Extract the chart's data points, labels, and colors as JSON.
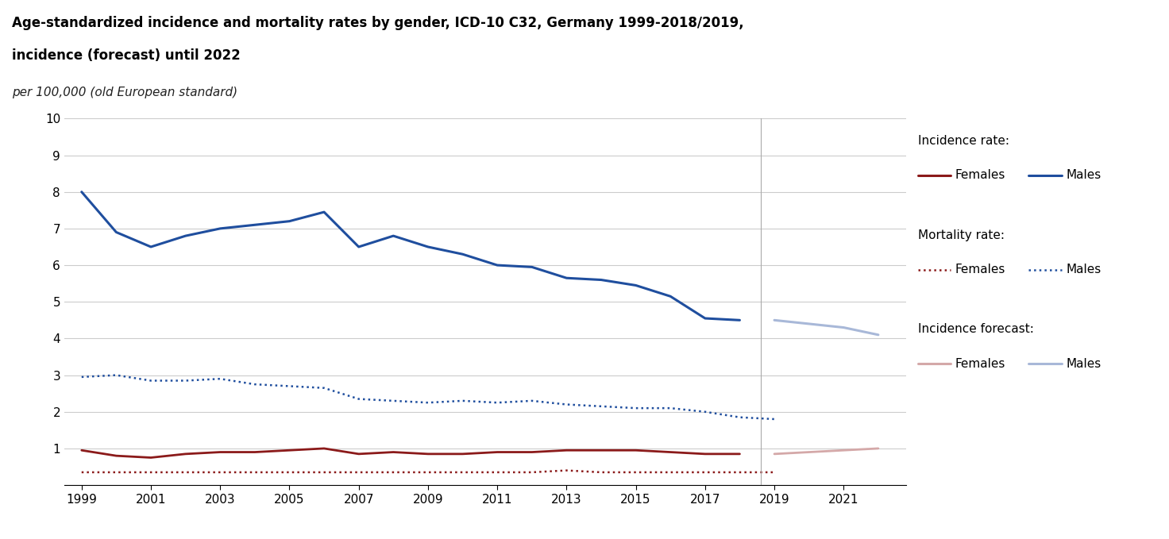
{
  "title_line1": "Age-standardized incidence and mortality rates by gender, ICD-10 C32, Germany 1999-2018/2019,",
  "title_line2": "incidence (forecast) until 2022",
  "subtitle": "per 100,000 (old European standard)",
  "years_incidence": [
    1999,
    2000,
    2001,
    2002,
    2003,
    2004,
    2005,
    2006,
    2007,
    2008,
    2009,
    2010,
    2011,
    2012,
    2013,
    2014,
    2015,
    2016,
    2017,
    2018
  ],
  "incidence_males": [
    8.0,
    6.9,
    6.5,
    6.8,
    7.0,
    7.1,
    7.2,
    7.45,
    6.5,
    6.8,
    6.5,
    6.3,
    6.0,
    5.95,
    5.65,
    5.6,
    5.45,
    5.15,
    4.55,
    4.5
  ],
  "incidence_females": [
    0.95,
    0.8,
    0.75,
    0.85,
    0.9,
    0.9,
    0.95,
    1.0,
    0.85,
    0.9,
    0.85,
    0.85,
    0.9,
    0.9,
    0.95,
    0.95,
    0.95,
    0.9,
    0.85,
    0.85
  ],
  "years_mortality": [
    1999,
    2000,
    2001,
    2002,
    2003,
    2004,
    2005,
    2006,
    2007,
    2008,
    2009,
    2010,
    2011,
    2012,
    2013,
    2014,
    2015,
    2016,
    2017,
    2018,
    2019
  ],
  "mortality_males": [
    2.95,
    3.0,
    2.85,
    2.85,
    2.9,
    2.75,
    2.7,
    2.65,
    2.35,
    2.3,
    2.25,
    2.3,
    2.25,
    2.3,
    2.2,
    2.15,
    2.1,
    2.1,
    2.0,
    1.85,
    1.8
  ],
  "mortality_females": [
    0.35,
    0.35,
    0.35,
    0.35,
    0.35,
    0.35,
    0.35,
    0.35,
    0.35,
    0.35,
    0.35,
    0.35,
    0.35,
    0.35,
    0.4,
    0.35,
    0.35,
    0.35,
    0.35,
    0.35,
    0.35
  ],
  "years_forecast": [
    2019,
    2020,
    2021,
    2022
  ],
  "forecast_males": [
    4.5,
    4.4,
    4.3,
    4.1
  ],
  "forecast_females": [
    0.85,
    0.9,
    0.95,
    1.0
  ],
  "color_male_incidence": "#1f4e9e",
  "color_female_incidence": "#8b1a1a",
  "color_male_mortality": "#1f4e9e",
  "color_female_mortality": "#8b1a1a",
  "color_male_forecast": "#a8b8d8",
  "color_female_forecast": "#d4a8a8",
  "ylim": [
    0,
    10
  ],
  "yticks": [
    0,
    1,
    2,
    3,
    4,
    5,
    6,
    7,
    8,
    9,
    10
  ],
  "xticks": [
    1999,
    2001,
    2003,
    2005,
    2007,
    2009,
    2011,
    2013,
    2015,
    2017,
    2019,
    2021
  ]
}
